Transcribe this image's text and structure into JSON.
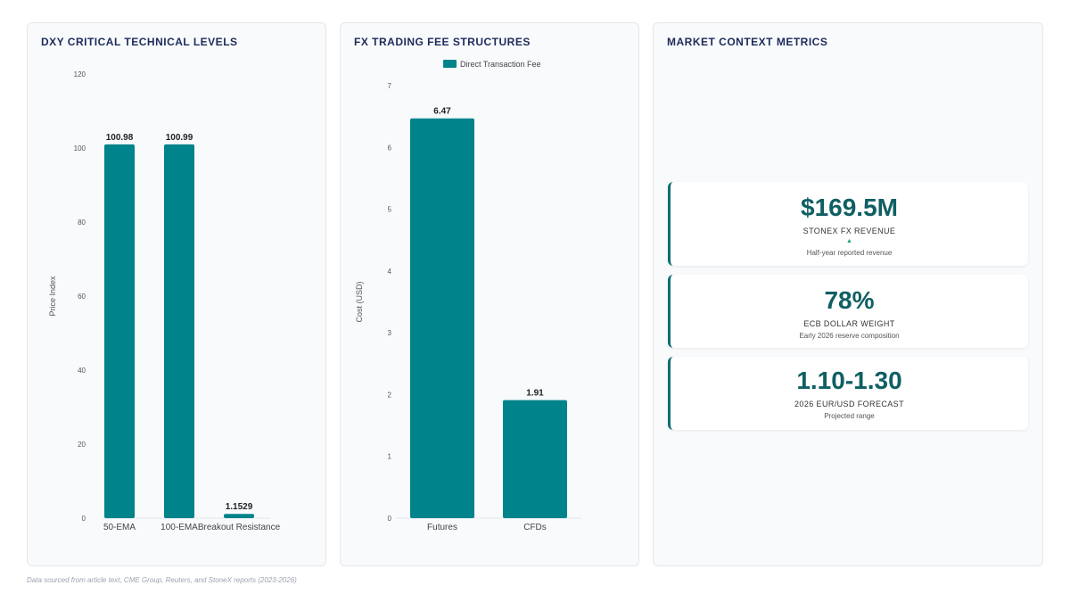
{
  "colors": {
    "bar": "#00838a",
    "accent": "#0f5f63",
    "title": "#1e2a5a"
  },
  "chart_data": [
    {
      "type": "bar",
      "title": "DXY CRITICAL TECHNICAL LEVELS",
      "ylabel": "Price Index",
      "xlabel": "",
      "categories": [
        "50-EMA",
        "100-EMA",
        "Breakout Resistance"
      ],
      "values": [
        100.98,
        100.99,
        1.1529
      ],
      "data_labels": [
        "100.98",
        "100.99",
        "1.1529"
      ],
      "ylim": [
        0,
        120
      ],
      "yticks": [
        0,
        20,
        40,
        60,
        80,
        100,
        120
      ],
      "legend": null
    },
    {
      "type": "bar",
      "title": "FX TRADING FEE STRUCTURES",
      "ylabel": "Cost (USD)",
      "xlabel": "",
      "categories": [
        "Futures",
        "CFDs"
      ],
      "series": [
        {
          "name": "Direct Transaction Fee",
          "values": [
            6.47,
            1.91
          ]
        }
      ],
      "data_labels": [
        "6.47",
        "1.91"
      ],
      "ylim": [
        0,
        7
      ],
      "yticks": [
        0,
        1,
        2,
        3,
        4,
        5,
        6,
        7
      ],
      "legend": "top-center"
    }
  ],
  "metrics_panel": {
    "title": "MARKET CONTEXT METRICS",
    "cards": [
      {
        "value": "$169.5M",
        "label": "STONEX FX REVENUE",
        "arrow": "▲",
        "sub": "Half-year reported revenue"
      },
      {
        "value": "78%",
        "label": "ECB DOLLAR WEIGHT",
        "sub": "Early 2026 reserve composition"
      },
      {
        "value": "1.10-1.30",
        "label": "2026 EUR/USD FORECAST",
        "sub": "Projected range"
      }
    ]
  },
  "footnote": "Data sourced from article text, CME Group, Reuters, and StoneX reports (2023-2026)"
}
